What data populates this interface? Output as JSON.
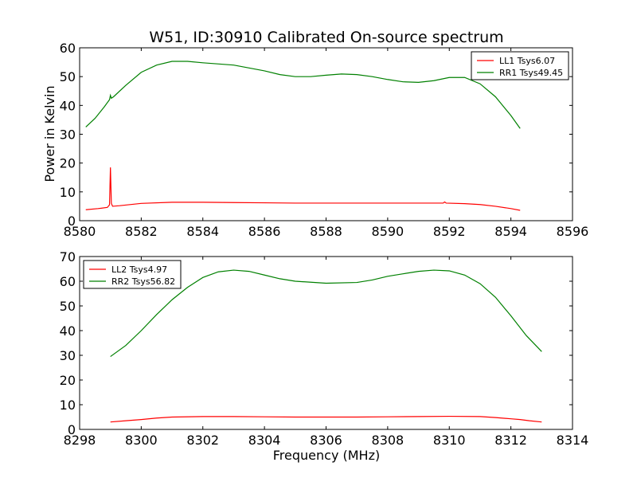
{
  "chart_data": [
    {
      "type": "line",
      "title": "W51, ID:30910 Calibrated On-source spectrum",
      "xlabel": "",
      "ylabel": "Power in Kelvin",
      "xlim": [
        8580,
        8596
      ],
      "ylim": [
        0,
        60
      ],
      "xticks": [
        "8580",
        "8582",
        "8584",
        "8586",
        "8588",
        "8590",
        "8592",
        "8594",
        "8596"
      ],
      "yticks": [
        "0",
        "10",
        "20",
        "30",
        "40",
        "50",
        "60"
      ],
      "grid": false,
      "legend_position": "top-right",
      "series": [
        {
          "name": "LL1 Tsys6.07",
          "color": "#ff0000",
          "points": [
            [
              8580.2,
              3.8
            ],
            [
              8580.6,
              4.2
            ],
            [
              8580.9,
              4.6
            ],
            [
              8580.97,
              5.5
            ],
            [
              8581.0,
              18.5
            ],
            [
              8581.03,
              6.0
            ],
            [
              8581.07,
              5.0
            ],
            [
              8581.3,
              5.2
            ],
            [
              8582.0,
              6.0
            ],
            [
              8583.0,
              6.4
            ],
            [
              8584.0,
              6.4
            ],
            [
              8585.0,
              6.3
            ],
            [
              8586.0,
              6.2
            ],
            [
              8587.0,
              6.1
            ],
            [
              8588.0,
              6.1
            ],
            [
              8589.0,
              6.1
            ],
            [
              8590.0,
              6.1
            ],
            [
              8591.0,
              6.1
            ],
            [
              8591.8,
              6.1
            ],
            [
              8591.85,
              6.5
            ],
            [
              8591.9,
              6.1
            ],
            [
              8592.5,
              5.9
            ],
            [
              8593.0,
              5.6
            ],
            [
              8593.5,
              5.0
            ],
            [
              8594.0,
              4.2
            ],
            [
              8594.3,
              3.6
            ]
          ]
        },
        {
          "name": "RR1 Tsys49.45",
          "color": "#008000",
          "points": [
            [
              8580.2,
              32.5
            ],
            [
              8580.5,
              35.5
            ],
            [
              8580.8,
              39.5
            ],
            [
              8580.97,
              42
            ],
            [
              8581.0,
              43.5
            ],
            [
              8581.03,
              42.5
            ],
            [
              8581.1,
              43
            ],
            [
              8581.5,
              47
            ],
            [
              8582.0,
              51.5
            ],
            [
              8582.5,
              54
            ],
            [
              8583.0,
              55.3
            ],
            [
              8583.5,
              55.3
            ],
            [
              8584.0,
              54.8
            ],
            [
              8585.0,
              54
            ],
            [
              8585.5,
              53
            ],
            [
              8586.0,
              52
            ],
            [
              8586.5,
              50.7
            ],
            [
              8587.0,
              50
            ],
            [
              8587.5,
              50
            ],
            [
              8588.0,
              50.5
            ],
            [
              8588.5,
              50.9
            ],
            [
              8589.0,
              50.7
            ],
            [
              8589.5,
              50
            ],
            [
              8590.0,
              49
            ],
            [
              8590.5,
              48.2
            ],
            [
              8591.0,
              48
            ],
            [
              8591.5,
              48.6
            ],
            [
              8592.0,
              49.7
            ],
            [
              8592.5,
              49.7
            ],
            [
              8593.0,
              47.5
            ],
            [
              8593.5,
              43
            ],
            [
              8594.0,
              36.5
            ],
            [
              8594.3,
              32
            ]
          ]
        }
      ]
    },
    {
      "type": "line",
      "title": "",
      "xlabel": "Frequency (MHz)",
      "ylabel": "",
      "xlim": [
        8298,
        8314
      ],
      "ylim": [
        0,
        70
      ],
      "xticks": [
        "8298",
        "8300",
        "8302",
        "8304",
        "8306",
        "8308",
        "8310",
        "8312",
        "8314"
      ],
      "yticks": [
        "0",
        "10",
        "20",
        "30",
        "40",
        "50",
        "60",
        "70"
      ],
      "grid": false,
      "legend_position": "top-left",
      "series": [
        {
          "name": "LL2 Tsys4.97",
          "color": "#ff0000",
          "points": [
            [
              8299.0,
              3.0
            ],
            [
              8299.5,
              3.5
            ],
            [
              8300.0,
              4.0
            ],
            [
              8300.5,
              4.6
            ],
            [
              8301.0,
              5.0
            ],
            [
              8302.0,
              5.2
            ],
            [
              8303.0,
              5.2
            ],
            [
              8304.0,
              5.1
            ],
            [
              8305.0,
              5.0
            ],
            [
              8306.0,
              5.0
            ],
            [
              8307.0,
              5.0
            ],
            [
              8308.0,
              5.1
            ],
            [
              8309.0,
              5.2
            ],
            [
              8310.0,
              5.3
            ],
            [
              8311.0,
              5.2
            ],
            [
              8311.5,
              4.8
            ],
            [
              8312.0,
              4.3
            ],
            [
              8312.3,
              4.0
            ],
            [
              8312.6,
              3.5
            ],
            [
              8313.0,
              3.0
            ]
          ]
        },
        {
          "name": "RR2 Tsys56.82",
          "color": "#008000",
          "points": [
            [
              8299.0,
              29.5
            ],
            [
              8299.5,
              34
            ],
            [
              8300.0,
              40
            ],
            [
              8300.5,
              46.5
            ],
            [
              8301.0,
              52.5
            ],
            [
              8301.5,
              57.5
            ],
            [
              8302.0,
              61.5
            ],
            [
              8302.5,
              63.8
            ],
            [
              8303.0,
              64.5
            ],
            [
              8303.5,
              64
            ],
            [
              8304.0,
              62.5
            ],
            [
              8304.5,
              61
            ],
            [
              8305.0,
              60
            ],
            [
              8306.0,
              59.2
            ],
            [
              8307.0,
              59.5
            ],
            [
              8307.5,
              60.5
            ],
            [
              8308.0,
              62
            ],
            [
              8308.5,
              63
            ],
            [
              8309.0,
              64
            ],
            [
              8309.5,
              64.5
            ],
            [
              8310.0,
              64.2
            ],
            [
              8310.5,
              62.5
            ],
            [
              8311.0,
              59
            ],
            [
              8311.5,
              53.5
            ],
            [
              8312.0,
              46
            ],
            [
              8312.5,
              38
            ],
            [
              8313.0,
              31.5
            ]
          ]
        }
      ]
    }
  ]
}
